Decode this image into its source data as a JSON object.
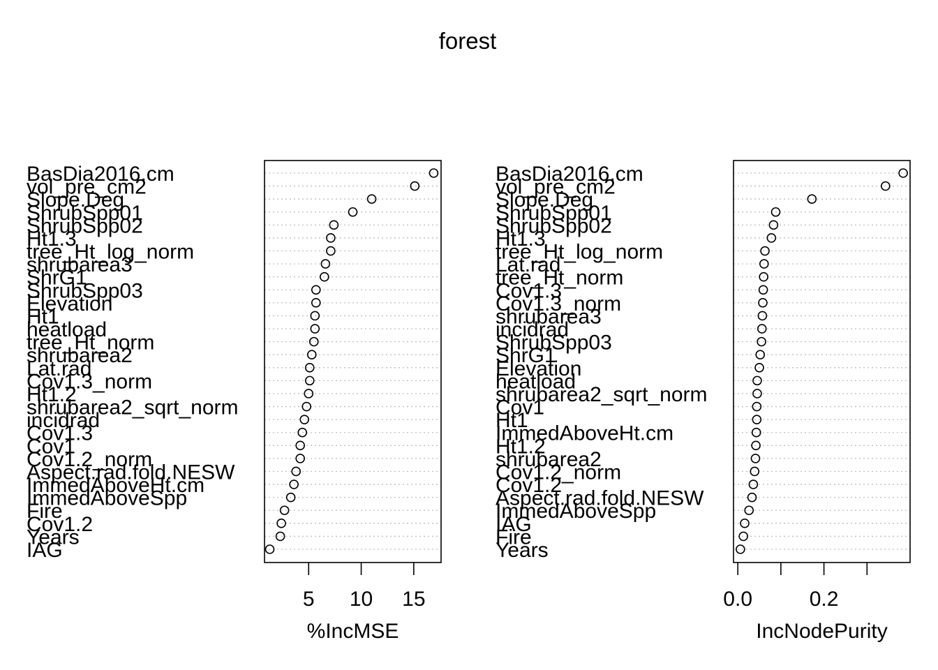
{
  "title": "forest",
  "chart_data": [
    {
      "type": "scatter",
      "xlabel": "%IncMSE",
      "ylabel": "",
      "xlim": [
        0.8,
        17.6
      ],
      "xticks": [
        5,
        10,
        15
      ],
      "categories": [
        "BasDia2016.cm",
        "vol_pre_cm2",
        "Slope.Deg",
        "ShrubSpp01",
        "ShrubSpp02",
        "Ht1.3",
        "tree_Ht_log_norm",
        "shrubarea3",
        "ShrG1",
        "ShrubSpp03",
        "Elevation",
        "Ht1",
        "heatload",
        "tree_Ht_norm",
        "shrubarea2",
        "Lat.rad",
        "Cov1.3_norm",
        "Ht1.2",
        "shrubarea2_sqrt_norm",
        "incidrad",
        "Cov1.3",
        "Cov1",
        "Cov1.2_norm",
        "Aspect.rad.fold.NESW",
        "ImmedAboveHt.cm",
        "ImmedAboveSpp",
        "Fire",
        "Cov1.2",
        "Years",
        "IAG"
      ],
      "values": [
        16.9,
        15.1,
        11.0,
        9.2,
        7.4,
        7.1,
        7.1,
        6.6,
        6.5,
        5.7,
        5.7,
        5.6,
        5.6,
        5.5,
        5.3,
        5.1,
        5.1,
        5.0,
        4.8,
        4.6,
        4.4,
        4.2,
        4.2,
        3.8,
        3.6,
        3.3,
        2.7,
        2.4,
        2.3,
        1.3
      ]
    },
    {
      "type": "scatter",
      "xlabel": "IncNodePurity",
      "ylabel": "",
      "xlim": [
        -0.01,
        0.4
      ],
      "xticks": [
        0.0,
        0.1,
        0.2,
        0.3
      ],
      "xticklabels": [
        "0.0",
        "",
        "0.2",
        ""
      ],
      "categories": [
        "BasDia2016.cm",
        "vol_pre_cm2",
        "Slope.Deg",
        "ShrubSpp01",
        "ShrubSpp02",
        "Ht1.3",
        "tree_Ht_log_norm",
        "Lat.rad",
        "tree_Ht_norm",
        "Cov1.3",
        "Cov1.3_norm",
        "shrubarea3",
        "incidrad",
        "ShrubSpp03",
        "ShrG1",
        "Elevation",
        "heatload",
        "shrubarea2_sqrt_norm",
        "Cov1",
        "Ht1",
        "ImmedAboveHt.cm",
        "Ht1.2",
        "shrubarea2",
        "Cov1.2_norm",
        "Cov1.2",
        "Aspect.rad.fold.NESW",
        "ImmedAboveSpp",
        "IAG",
        "Fire",
        "Years"
      ],
      "values": [
        0.384,
        0.343,
        0.172,
        0.088,
        0.083,
        0.078,
        0.063,
        0.061,
        0.06,
        0.059,
        0.058,
        0.057,
        0.056,
        0.055,
        0.052,
        0.05,
        0.045,
        0.045,
        0.044,
        0.044,
        0.043,
        0.042,
        0.041,
        0.039,
        0.036,
        0.033,
        0.026,
        0.016,
        0.013,
        0.006
      ]
    }
  ]
}
